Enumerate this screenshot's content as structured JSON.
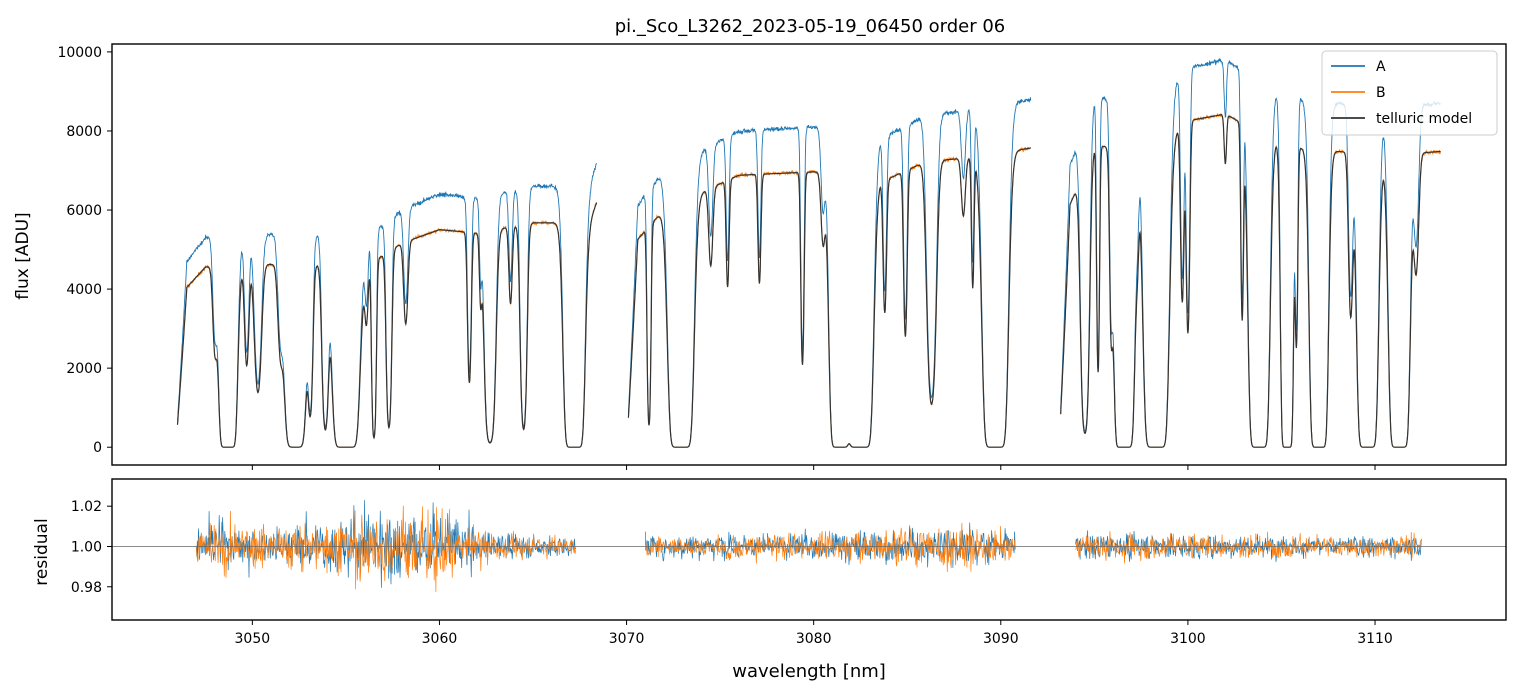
{
  "chart_data": {
    "type": "line",
    "title": "pi._Sco_L3262_2023-05-19_06450  order 06",
    "xlabel": "wavelength [nm]",
    "xlim": [
      3042.5,
      3117.0
    ],
    "xticks": [
      3050,
      3060,
      3070,
      3080,
      3090,
      3100,
      3110
    ],
    "colors": {
      "A": "#1f77b4",
      "B": "#ff7f0e",
      "model": "#333333",
      "residual_ref": "#666666"
    },
    "panels": {
      "flux": {
        "ylabel": "flux [ADU]",
        "ylim": [
          -450,
          10200
        ],
        "yticks": [
          0,
          2000,
          4000,
          6000,
          8000,
          10000
        ],
        "legend": {
          "placement": "top-right",
          "entries": [
            "A",
            "B",
            "telluric model"
          ]
        },
        "segments": [
          {
            "x_start": 3046.0,
            "x_end": 3068.4,
            "A_continuum": [
              [
                3046.0,
                4400
              ],
              [
                3047.5,
                5300
              ],
              [
                3052.0,
                5400
              ],
              [
                3056.0,
                5300
              ],
              [
                3058.0,
                6000
              ],
              [
                3060.0,
                6400
              ],
              [
                3062.0,
                6300
              ],
              [
                3065.0,
                6600
              ],
              [
                3068.0,
                6600
              ],
              [
                3068.4,
                7200
              ]
            ]
          },
          {
            "x_start": 3070.1,
            "x_end": 3091.6,
            "A_continuum": [
              [
                3070.1,
                5800
              ],
              [
                3072.0,
                7000
              ],
              [
                3074.0,
                7500
              ],
              [
                3076.0,
                8000
              ],
              [
                3080.0,
                8100
              ],
              [
                3084.0,
                7900
              ],
              [
                3086.0,
                8400
              ],
              [
                3088.0,
                8500
              ],
              [
                3091.6,
                8800
              ]
            ]
          },
          {
            "x_start": 3093.2,
            "x_end": 3113.5,
            "A_continuum": [
              [
                3093.2,
                6500
              ],
              [
                3095.0,
                8800
              ],
              [
                3097.5,
                9100
              ],
              [
                3099.0,
                9200
              ],
              [
                3100.0,
                9600
              ],
              [
                3102.0,
                9800
              ],
              [
                3104.0,
                9200
              ],
              [
                3106.0,
                8800
              ],
              [
                3108.0,
                8700
              ],
              [
                3111.0,
                8600
              ],
              [
                3113.5,
                8700
              ]
            ]
          }
        ],
        "B_to_A_ratio": 0.86,
        "absorption_lines": [
          [
            3048.0,
            0.45,
            0.1
          ],
          [
            3048.7,
            1.0,
            0.22
          ],
          [
            3049.7,
            0.55,
            0.1
          ],
          [
            3050.3,
            0.7,
            0.15
          ],
          [
            3051.5,
            0.45,
            0.12
          ],
          [
            3052.3,
            0.99,
            0.28
          ],
          [
            3053.1,
            0.8,
            0.1
          ],
          [
            3053.9,
            0.9,
            0.12
          ],
          [
            3055.0,
            1.0,
            0.32
          ],
          [
            3056.1,
            0.3,
            0.08
          ],
          [
            3056.5,
            0.95,
            0.08
          ],
          [
            3057.3,
            0.9,
            0.1
          ],
          [
            3058.2,
            0.4,
            0.1
          ],
          [
            3061.6,
            0.7,
            0.08
          ],
          [
            3062.2,
            0.3,
            0.06
          ],
          [
            3062.7,
            0.98,
            0.18
          ],
          [
            3063.8,
            0.35,
            0.08
          ],
          [
            3064.5,
            0.92,
            0.12
          ],
          [
            3067.2,
            1.0,
            0.25
          ],
          [
            3071.2,
            0.9,
            0.07
          ],
          [
            3072.9,
            1.0,
            0.3
          ],
          [
            3074.5,
            0.3,
            0.1
          ],
          [
            3075.4,
            0.4,
            0.07
          ],
          [
            3077.1,
            0.4,
            0.07
          ],
          [
            3079.4,
            0.7,
            0.07
          ],
          [
            3080.5,
            0.25,
            0.1
          ],
          [
            3081.4,
            1.0,
            0.25
          ],
          [
            3082.1,
            0.7,
            0.12
          ],
          [
            3082.5,
            1.0,
            0.3
          ],
          [
            3083.8,
            0.5,
            0.08
          ],
          [
            3084.9,
            0.6,
            0.08
          ],
          [
            3086.3,
            0.85,
            0.18
          ],
          [
            3088.0,
            0.2,
            0.1
          ],
          [
            3088.5,
            0.45,
            0.06
          ],
          [
            3089.7,
            1.0,
            0.3
          ],
          [
            3094.5,
            0.95,
            0.15
          ],
          [
            3095.2,
            0.75,
            0.06
          ],
          [
            3095.9,
            0.55,
            0.07
          ],
          [
            3096.3,
            0.65,
            0.08
          ],
          [
            3096.6,
            1.0,
            0.25
          ],
          [
            3097.3,
            0.25,
            0.08
          ],
          [
            3098.3,
            1.0,
            0.3
          ],
          [
            3099.7,
            0.55,
            0.08
          ],
          [
            3100.0,
            0.65,
            0.08
          ],
          [
            3102.0,
            0.15,
            0.06
          ],
          [
            3102.9,
            0.6,
            0.06
          ],
          [
            3103.8,
            1.0,
            0.25
          ],
          [
            3105.3,
            1.0,
            0.15
          ],
          [
            3105.8,
            0.65,
            0.06
          ],
          [
            3107.0,
            1.0,
            0.22
          ],
          [
            3108.7,
            0.55,
            0.1
          ],
          [
            3109.6,
            1.0,
            0.25
          ],
          [
            3111.3,
            1.0,
            0.25
          ],
          [
            3112.2,
            0.4,
            0.12
          ]
        ]
      },
      "residual": {
        "ylabel": "residual",
        "ylim": [
          0.9635,
          1.0335
        ],
        "yticks": [
          0.98,
          1.0,
          1.02
        ],
        "ytick_labels": [
          "0.98",
          "1.00",
          "1.02"
        ],
        "reference": 1.0,
        "segments": [
          [
            3047.0,
            3067.3
          ],
          [
            3071.0,
            3090.8
          ],
          [
            3094.0,
            3112.5
          ]
        ],
        "noise_profile": [
          [
            3047.0,
            0.02
          ],
          [
            3051.0,
            0.014
          ],
          [
            3054.0,
            0.02
          ],
          [
            3057.0,
            0.03
          ],
          [
            3060.0,
            0.026
          ],
          [
            3063.0,
            0.01
          ],
          [
            3067.3,
            0.007
          ],
          [
            3071.0,
            0.008
          ],
          [
            3076.0,
            0.009
          ],
          [
            3080.0,
            0.01
          ],
          [
            3082.0,
            0.012
          ],
          [
            3086.0,
            0.014
          ],
          [
            3088.0,
            0.016
          ],
          [
            3090.8,
            0.01
          ],
          [
            3094.0,
            0.009
          ],
          [
            3098.0,
            0.01
          ],
          [
            3104.0,
            0.009
          ],
          [
            3108.0,
            0.007
          ],
          [
            3112.5,
            0.009
          ]
        ]
      }
    }
  }
}
